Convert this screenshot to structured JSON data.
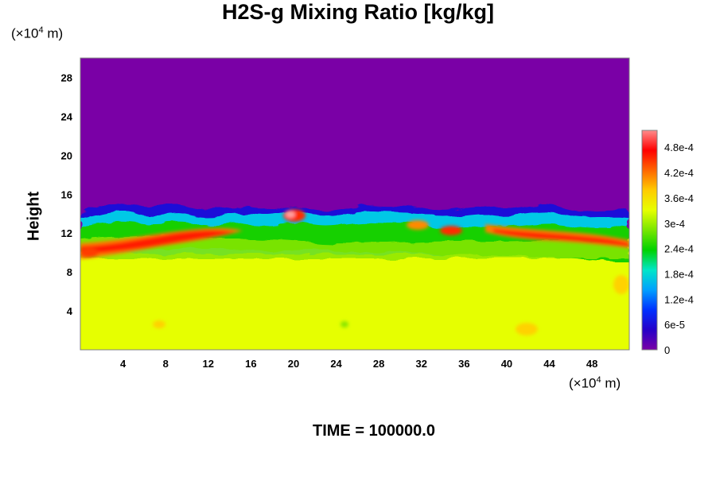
{
  "chart_data": {
    "type": "heatmap",
    "title": "H2S-g Mixing Ratio [kg/kg]",
    "ylabel": "Height",
    "xunit": "(×10⁴ m)",
    "yunit": "(×10⁴ m)",
    "unit_prefix": "(×10",
    "unit_exp": "4",
    "unit_suffix": " m)",
    "xlim": [
      0,
      51.5
    ],
    "ylim": [
      0,
      30
    ],
    "x_ticks": [
      "4",
      "8",
      "12",
      "16",
      "20",
      "24",
      "28",
      "32",
      "36",
      "40",
      "44",
      "48"
    ],
    "y_ticks": [
      "4",
      "8",
      "12",
      "16",
      "20",
      "24",
      "28"
    ],
    "colorbar_ticks": [
      "0",
      "6e-5",
      "1.2e-4",
      "1.8e-4",
      "2.4e-4",
      "3e-4",
      "3.6e-4",
      "4.2e-4",
      "4.8e-4"
    ],
    "colorbar_range": [
      0,
      0.00052
    ],
    "colormap": [
      "#7a00a6",
      "#2600c8",
      "#0030ff",
      "#00a0ff",
      "#00e6c8",
      "#00d200",
      "#78e600",
      "#e6ff00",
      "#ffcc00",
      "#ff6600",
      "#ff0000",
      "#ff8c8c"
    ],
    "regions": [
      {
        "name": "upper",
        "value": 0,
        "color": "#7a00a6",
        "y_range": [
          14,
          30
        ]
      },
      {
        "name": "lower",
        "value": 0.00035,
        "color": "#e6ff00",
        "y_range": [
          0,
          11
        ]
      },
      {
        "name": "mixing-band",
        "value": 0.00025,
        "color": "#00d200",
        "y_range": [
          11,
          14
        ]
      },
      {
        "name": "max-streak",
        "value": 0.00048,
        "color": "#ff0000",
        "y_range": [
          10,
          12
        ]
      }
    ],
    "time_label": "TIME = 100000.0"
  }
}
